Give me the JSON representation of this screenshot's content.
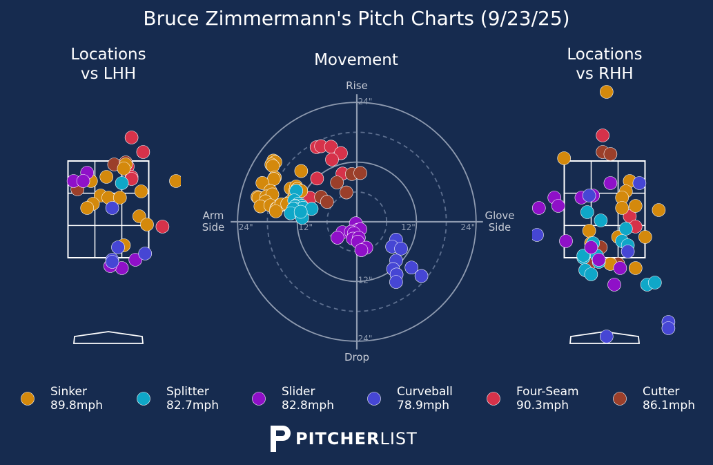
{
  "title": "Bruce Zimmermann's Pitch Charts (9/23/25)",
  "panels": {
    "left_title": "Locations\nvs LHH",
    "center_title": "Movement",
    "right_title": "Locations\nvs RHH"
  },
  "movement_labels": {
    "rise": "Rise",
    "drop": "Drop",
    "arm": "Arm\nSide",
    "glove": "Glove\nSide",
    "ring_ticks": [
      "24\"",
      "12\"",
      "12\"",
      "24\"",
      "12\"",
      "24\""
    ]
  },
  "colors": {
    "Sinker": "#d4890c",
    "Splitter": "#0fa7c8",
    "Slider": "#8f10c8",
    "Curveball": "#4646d4",
    "Four-Seam": "#d6324a",
    "Cutter": "#9b3f2a"
  },
  "legend": [
    {
      "pitch": "Sinker",
      "speed": "89.8mph"
    },
    {
      "pitch": "Splitter",
      "speed": "82.7mph"
    },
    {
      "pitch": "Slider",
      "speed": "82.8mph"
    },
    {
      "pitch": "Curveball",
      "speed": "78.9mph"
    },
    {
      "pitch": "Four-Seam",
      "speed": "90.3mph"
    },
    {
      "pitch": "Cutter",
      "speed": "86.1mph"
    }
  ],
  "brand": {
    "bold": "PITCHER",
    "light": "LIST"
  },
  "chart_data": [
    {
      "type": "scatter",
      "title": "Locations vs LHH",
      "points": {
        "Four-Seam": [
          [
            0.6,
            3.9
          ],
          [
            0.9,
            3.55
          ],
          [
            0.5,
            3.2
          ],
          [
            0.6,
            2.95
          ],
          [
            0.4,
            3.25
          ],
          [
            1.4,
            1.75
          ],
          [
            0.6,
            2.9
          ]
        ],
        "Cutter": [
          [
            0.15,
            3.25
          ],
          [
            -0.8,
            2.65
          ],
          [
            0.45,
            3.3
          ]
        ],
        "Sinker": [
          [
            0.45,
            3.25
          ],
          [
            0.4,
            3.15
          ],
          [
            -0.05,
            2.95
          ],
          [
            -0.45,
            2.85
          ],
          [
            -0.2,
            2.5
          ],
          [
            -0.4,
            2.3
          ],
          [
            -0.55,
            2.2
          ],
          [
            0.0,
            2.45
          ],
          [
            0.3,
            2.45
          ],
          [
            0.85,
            2.6
          ],
          [
            0.8,
            2.0
          ],
          [
            1.0,
            1.8
          ],
          [
            0.4,
            1.3
          ],
          [
            1.75,
            2.85
          ]
        ],
        "Splitter": [
          [
            0.35,
            2.8
          ]
        ],
        "Slider": [
          [
            -0.55,
            3.05
          ],
          [
            -0.9,
            2.85
          ],
          [
            -0.65,
            2.85
          ],
          [
            0.7,
            0.95
          ],
          [
            0.35,
            0.75
          ],
          [
            0.05,
            0.8
          ]
        ],
        "Curveball": [
          [
            0.1,
            2.2
          ],
          [
            0.25,
            1.25
          ],
          [
            0.95,
            1.1
          ],
          [
            0.1,
            0.95
          ],
          [
            0.1,
            0.9
          ]
        ]
      }
    },
    {
      "type": "scatter",
      "title": "Movement",
      "x_label_left": "Arm Side",
      "x_label_right": "Glove Side",
      "y_label_top": "Rise",
      "y_label_bottom": "Drop",
      "rings": [
        6,
        12,
        18,
        24
      ],
      "points": {
        "Four-Seam": [
          [
            -8.1,
            15.0
          ],
          [
            -7.2,
            15.2
          ],
          [
            -5.2,
            15.1
          ],
          [
            -3.2,
            13.8
          ],
          [
            -5.0,
            12.5
          ],
          [
            -2.9,
            9.7
          ],
          [
            -8.0,
            8.7
          ],
          [
            -9.4,
            4.8
          ]
        ],
        "Cutter": [
          [
            -1.0,
            9.6
          ],
          [
            0.7,
            9.8
          ],
          [
            -4.0,
            7.9
          ],
          [
            -2.1,
            5.9
          ],
          [
            -7.2,
            5.0
          ],
          [
            -6.0,
            4.0
          ]
        ],
        "Sinker": [
          [
            -16.8,
            12.3
          ],
          [
            -16.4,
            12.0
          ],
          [
            -17.2,
            11.5
          ],
          [
            -16.9,
            11.2
          ],
          [
            -11.2,
            10.2
          ],
          [
            -16.5,
            8.9
          ],
          [
            -16.7,
            8.6
          ],
          [
            -19.0,
            7.8
          ],
          [
            -17.4,
            6.2
          ],
          [
            -13.3,
            6.7
          ],
          [
            -12.5,
            6.0
          ],
          [
            -12.2,
            7.1
          ],
          [
            -12.0,
            6.6
          ],
          [
            -20.0,
            5.0
          ],
          [
            -19.8,
            4.8
          ],
          [
            -18.2,
            5.1
          ],
          [
            -17.0,
            5.5
          ],
          [
            -18.4,
            4.1
          ],
          [
            -19.4,
            3.1
          ],
          [
            -17.4,
            3.3
          ],
          [
            -16.2,
            2.7
          ],
          [
            -15.4,
            3.3
          ],
          [
            -16.0,
            2.8
          ],
          [
            -15.2,
            3.5
          ],
          [
            -12.8,
            4.6
          ],
          [
            -13.6,
            3.9
          ],
          [
            -11.2,
            6.2
          ],
          [
            -14.0,
            3.6
          ],
          [
            -16.3,
            2.1
          ]
        ],
        "Splitter": [
          [
            -12.2,
            6.2
          ],
          [
            -12.6,
            4.3
          ],
          [
            -11.8,
            3.6
          ],
          [
            -12.3,
            3.2
          ],
          [
            -11.1,
            3.2
          ],
          [
            -12.4,
            3.1
          ],
          [
            -12.1,
            2.6
          ],
          [
            -12.2,
            2.1
          ],
          [
            -10.8,
            2.8
          ],
          [
            -12.8,
            2.6
          ],
          [
            -13.3,
            1.7
          ],
          [
            -11.2,
            1.4
          ],
          [
            -11.0,
            0.8
          ],
          [
            -9.1,
            2.6
          ],
          [
            -11.3,
            2.0
          ]
        ],
        "Slider": [
          [
            -0.2,
            -0.3
          ],
          [
            0.2,
            -1.6
          ],
          [
            0.7,
            -1.5
          ],
          [
            -2.9,
            -2.1
          ],
          [
            -1.2,
            -2.0
          ],
          [
            -0.6,
            -2.3
          ],
          [
            -3.9,
            -3.2
          ],
          [
            -0.8,
            -3.4
          ],
          [
            0.4,
            -3.2
          ],
          [
            0.2,
            -4.0
          ],
          [
            1.9,
            -5.2
          ],
          [
            0.9,
            -5.7
          ]
        ],
        "Curveball": [
          [
            7.9,
            -3.6
          ],
          [
            7.1,
            -5.0
          ],
          [
            8.9,
            -5.4
          ],
          [
            7.9,
            -7.8
          ],
          [
            7.3,
            -9.5
          ],
          [
            11.0,
            -9.2
          ],
          [
            8.0,
            -10.6
          ],
          [
            13.0,
            -10.9
          ],
          [
            7.9,
            -12.1
          ]
        ]
      }
    },
    {
      "type": "scatter",
      "title": "Locations vs RHH",
      "points": {
        "Sinker": [
          [
            0.05,
            5.0
          ],
          [
            -1.05,
            3.4
          ],
          [
            0.65,
            2.85
          ],
          [
            0.55,
            2.6
          ],
          [
            0.45,
            2.45
          ],
          [
            0.8,
            2.25
          ],
          [
            0.45,
            2.2
          ],
          [
            1.4,
            2.15
          ],
          [
            3.0,
            2.6
          ],
          [
            -0.4,
            1.65
          ],
          [
            0.35,
            1.5
          ],
          [
            -0.35,
            1.35
          ],
          [
            1.05,
            1.5
          ],
          [
            0.15,
            0.85
          ],
          [
            0.8,
            0.75
          ]
        ],
        "Four-Seam": [
          [
            -0.05,
            3.95
          ],
          [
            0.65,
            2.0
          ],
          [
            0.8,
            1.75
          ]
        ],
        "Cutter": [
          [
            -0.05,
            3.55
          ],
          [
            0.15,
            3.5
          ],
          [
            -0.4,
            0.85
          ],
          [
            0.35,
            0.85
          ],
          [
            -0.1,
            1.25
          ]
        ],
        "Splitter": [
          [
            -0.45,
            2.1
          ],
          [
            -0.1,
            1.9
          ],
          [
            0.55,
            1.7
          ],
          [
            -0.55,
            1.0
          ],
          [
            -0.3,
            1.35
          ],
          [
            0.45,
            1.4
          ],
          [
            -0.2,
            1.05
          ],
          [
            -0.15,
            0.9
          ],
          [
            0.6,
            1.3
          ],
          [
            -0.55,
            1.05
          ],
          [
            -0.5,
            0.7
          ],
          [
            -0.35,
            0.6
          ],
          [
            1.1,
            0.35
          ],
          [
            1.3,
            0.4
          ],
          [
            2.1,
            0.55
          ]
        ],
        "Slider": [
          [
            -1.3,
            2.45
          ],
          [
            -1.7,
            2.2
          ],
          [
            -1.2,
            2.25
          ],
          [
            -0.6,
            2.45
          ],
          [
            0.15,
            2.8
          ],
          [
            -0.3,
            2.5
          ],
          [
            -1.0,
            1.4
          ],
          [
            -0.35,
            1.25
          ],
          [
            -0.15,
            0.95
          ],
          [
            0.4,
            0.75
          ],
          [
            0.25,
            0.35
          ]
        ],
        "Curveball": [
          [
            -0.4,
            2.5
          ],
          [
            0.9,
            2.8
          ],
          [
            -1.75,
            1.55
          ],
          [
            0.6,
            1.15
          ],
          [
            1.65,
            -0.55
          ],
          [
            1.65,
            -0.7
          ],
          [
            0.05,
            -0.9
          ]
        ]
      }
    }
  ]
}
